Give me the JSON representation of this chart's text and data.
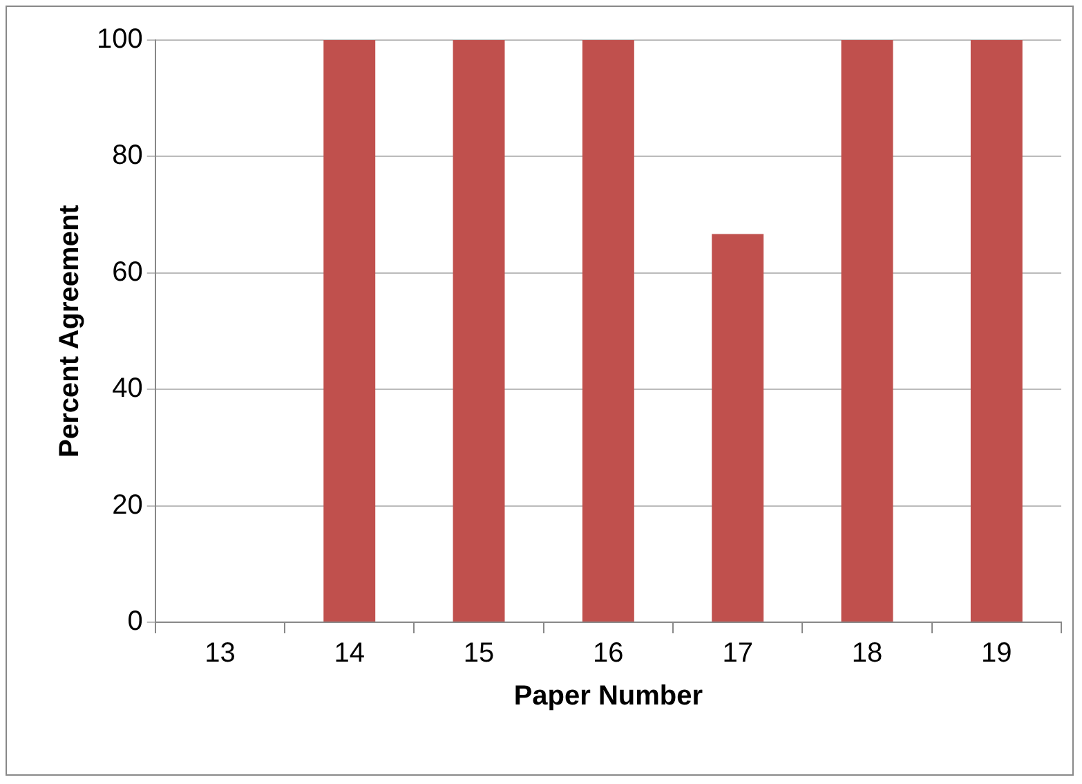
{
  "chart_data": {
    "type": "bar",
    "xlabel": "Paper Number",
    "ylabel": "Percent Agreement",
    "categories": [
      "13",
      "14",
      "15",
      "16",
      "17",
      "18",
      "19"
    ],
    "values": [
      0,
      100,
      100,
      100,
      66.7,
      100,
      100
    ],
    "color": "#c0504d",
    "ylim": [
      0,
      100
    ],
    "yticks": [
      0,
      20,
      40,
      60,
      80,
      100
    ],
    "grid": "y"
  }
}
